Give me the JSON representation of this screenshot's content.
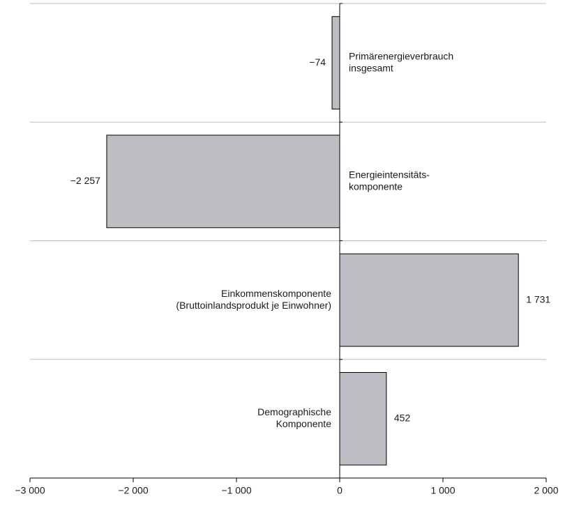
{
  "chart_data": {
    "type": "barh",
    "categories": [
      [
        "Primärenergieverbrauch",
        "insgesamt"
      ],
      [
        "Energieintensitäts-",
        "komponente"
      ],
      [
        "Einkommenskomponente",
        "(Bruttoinlandsprodukt je Einwohner)"
      ],
      [
        "Demographische",
        "Komponente"
      ]
    ],
    "values": [
      -74,
      -2257,
      1731,
      452
    ],
    "value_labels": [
      "−74",
      "−2 257",
      "1 731",
      "452"
    ],
    "color": "#bdbec3",
    "xlim": [
      -3000,
      2000
    ],
    "xticks": [
      {
        "value": -3000,
        "label": "−3 000"
      },
      {
        "value": -2000,
        "label": "−2 000"
      },
      {
        "value": -1000,
        "label": "−1 000"
      },
      0,
      {
        "value": 1000,
        "label": "1 000"
      },
      {
        "value": 2000,
        "label": "2 000"
      }
    ]
  }
}
